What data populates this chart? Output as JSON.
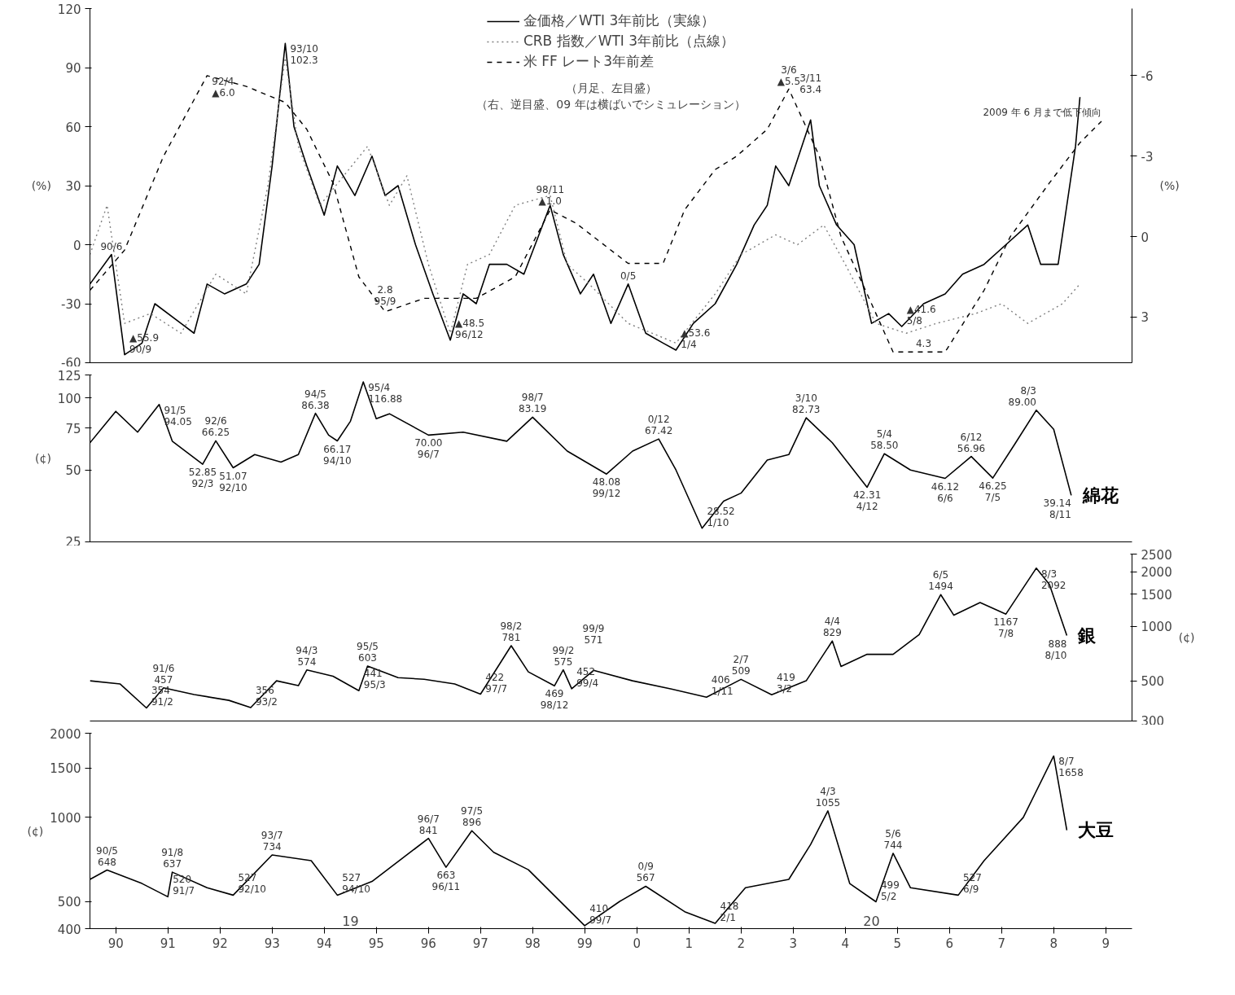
{
  "chart_data": [
    {
      "type": "line",
      "xlim": [
        "1990-01",
        "2010-01"
      ],
      "tick_labels": "y",
      "ylim": [
        -60,
        120
      ],
      "yticks": [
        -60,
        -30,
        0,
        30,
        60,
        90,
        120
      ],
      "ylabel": "(%)",
      "y2lim": [
        4.7,
        -8.5
      ],
      "y2ticks": [
        -6,
        -3,
        0,
        3
      ],
      "y2label": "(%)",
      "legend": "top",
      "series": [
        {
          "name": "金価格／WTI 3年前比（実線）",
          "color": "#000000",
          "line_style": "solid",
          "x": [
            "1990-01",
            "1990-06",
            "1990-09",
            "1991-01",
            "1991-04",
            "1991-10",
            "1992-01",
            "1992-04",
            "1992-08",
            "1993-01",
            "1993-04",
            "1993-07",
            "1993-10",
            "1993-12",
            "1994-03",
            "1994-07",
            "1994-10",
            "1995-02",
            "1995-06",
            "1995-09",
            "1995-12",
            "1996-04",
            "1996-08",
            "1996-12",
            "1997-03",
            "1997-06",
            "1997-09",
            "1998-01",
            "1998-05",
            "1998-11",
            "1999-02",
            "1999-06",
            "1999-09",
            "2000-01",
            "2000-05",
            "2000-09",
            "2001-01",
            "2001-04",
            "2001-08",
            "2002-01",
            "2002-06",
            "2002-10",
            "2003-01",
            "2003-03",
            "2003-06",
            "2003-11",
            "2004-01",
            "2004-05",
            "2004-09",
            "2005-01",
            "2005-05",
            "2005-08",
            "2006-01",
            "2006-06",
            "2006-10",
            "2007-03",
            "2007-08",
            "2008-01",
            "2008-04",
            "2008-08",
            "2008-12",
            "2009-01"
          ],
          "values": [
            -20,
            -5,
            -55.9,
            -50,
            -30,
            -40,
            -45,
            -20,
            -25,
            -20,
            -10,
            40,
            102.3,
            60,
            40,
            15,
            40,
            25,
            45,
            25,
            30,
            0,
            -25,
            -48.5,
            -25,
            -30,
            -10,
            -10,
            -15,
            20,
            -5,
            -25,
            -15,
            -40,
            -20,
            -45,
            -50,
            -53.6,
            -40,
            -30,
            -10,
            10,
            20,
            40,
            30,
            63.4,
            30,
            10,
            0,
            -40,
            -35,
            -41.6,
            -30,
            -25,
            -15,
            -10,
            0,
            10,
            -10,
            -10,
            50,
            75
          ]
        },
        {
          "name": "CRB 指数／WTI 3年前比（点線）",
          "color": "#808080",
          "line_style": "dotted",
          "x": [
            "1990-01",
            "1990-05",
            "1990-09",
            "1991-03",
            "1991-10",
            "1992-06",
            "1993-01",
            "1993-06",
            "1993-10",
            "1994-01",
            "1994-06",
            "1995-05",
            "1995-10",
            "1996-02",
            "1996-07",
            "1996-12",
            "1997-04",
            "1997-09",
            "1998-03",
            "1998-11",
            "1999-03",
            "1999-08",
            "2000-05",
            "2001-04",
            "2002-01",
            "2002-07",
            "2003-03",
            "2003-08",
            "2004-02",
            "2004-07",
            "2005-02",
            "2005-09",
            "2006-04",
            "2007-01",
            "2007-07",
            "2008-01",
            "2008-09",
            "2009-01"
          ],
          "values": [
            -5,
            20,
            -40,
            -35,
            -45,
            -15,
            -25,
            30,
            95,
            50,
            20,
            50,
            20,
            35,
            -10,
            -45,
            -10,
            -5,
            20,
            25,
            -10,
            -20,
            -40,
            -50,
            -25,
            -5,
            5,
            0,
            10,
            -10,
            -40,
            -45,
            -40,
            -35,
            -30,
            -40,
            -30,
            -20
          ]
        },
        {
          "name": "米 FF レート3年前差",
          "color": "#000000",
          "line_style": "dashed",
          "axis": "y2",
          "x": [
            "1990-01",
            "1990-09",
            "1991-06",
            "1992-04",
            "1993-01",
            "1993-10",
            "1994-03",
            "1994-09",
            "1995-03",
            "1995-09",
            "1996-06",
            "1997-06",
            "1998-03",
            "1998-11",
            "1999-05",
            "2000-05",
            "2001-01",
            "2001-06",
            "2002-01",
            "2002-06",
            "2003-01",
            "2003-06",
            "2004-01",
            "2004-06",
            "2005-01",
            "2005-06",
            "2006-06",
            "2007-03",
            "2007-09",
            "2008-06",
            "2009-01",
            "2009-06"
          ],
          "values": [
            2.0,
            0.5,
            -3,
            -6.0,
            -5.6,
            -5,
            -4,
            -2,
            1.5,
            2.8,
            2.3,
            2.3,
            1.5,
            -1.0,
            -0.5,
            1.0,
            1.0,
            -1,
            -2.5,
            -3,
            -4,
            -5.5,
            -3,
            0,
            2.5,
            4.3,
            4.3,
            2,
            0,
            -2,
            -3.5,
            -4.3
          ]
        }
      ],
      "annotations": [
        "（月足、左目盛）",
        "（右、逆目盛、09 年は横ばいでシミュレーション）",
        {
          "text": "93/10\n102.3",
          "x": "1993-10",
          "y": 102.3
        },
        {
          "text": "92/4\n▲6.0",
          "x": "1992-04",
          "y": 86
        },
        {
          "text": "90/6",
          "x": "1990-06",
          "y": -5
        },
        {
          "text": "▲55.9\n90/9",
          "x": "1990-09",
          "y": -55.9
        },
        {
          "text": "2.8\n95/9",
          "x": "1995-09",
          "y": -33
        },
        {
          "text": "▲48.5\n96/12",
          "x": "1996-12",
          "y": -48.5
        },
        {
          "text": "98/11\n▲1.0",
          "x": "1998-11",
          "y": 18
        },
        {
          "text": "0/5",
          "x": "2000-05",
          "y": -20
        },
        {
          "text": "▲53.6\n1/4",
          "x": "2001-04",
          "y": -53.6
        },
        {
          "text": "3/6\n▲5.5",
          "x": "2003-06",
          "y": 79
        },
        {
          "text": "3/11\n63.4",
          "x": "2003-11",
          "y": 63.4
        },
        {
          "text": "▲41.6\n5/8",
          "x": "2005-08",
          "y": -41.6
        },
        {
          "text": "4.3",
          "x": "2006-01",
          "y": -53
        },
        {
          "text": "2009 年 6 月まで低下傾向",
          "x": "2009-06",
          "y": 63
        }
      ]
    },
    {
      "type": "line",
      "xlim": [
        "1990-01",
        "2010-01"
      ],
      "tick_labels": "y",
      "log": true,
      "ylim": [
        25,
        125
      ],
      "yticks": [
        25,
        50,
        75,
        100,
        125
      ],
      "ylabel": "(¢)",
      "series": [
        {
          "name": "綿花",
          "color": "#000000",
          "x": [
            "1990-01",
            "1990-07",
            "1990-12",
            "1991-05",
            "1991-08",
            "1992-03",
            "1992-06",
            "1992-10",
            "1993-03",
            "1993-09",
            "1994-01",
            "1994-05",
            "1994-08",
            "1994-10",
            "1995-01",
            "1995-04",
            "1995-07",
            "1995-10",
            "1996-07",
            "1997-03",
            "1998-01",
            "1998-07",
            "1999-03",
            "1999-12",
            "2000-06",
            "2000-12",
            "2001-04",
            "2001-10",
            "2002-03",
            "2002-07",
            "2003-01",
            "2003-06",
            "2003-10",
            "2004-04",
            "2004-12",
            "2005-04",
            "2005-10",
            "2006-06",
            "2006-12",
            "2007-05",
            "2007-10",
            "2008-03",
            "2008-07",
            "2008-11"
          ],
          "values": [
            65,
            88,
            72,
            94.05,
            66,
            52.85,
            66.25,
            51.07,
            58,
            54,
            58,
            86.38,
            70,
            66.17,
            80,
            116.88,
            82,
            86,
            70.0,
            72,
            66,
            83.19,
            60,
            48.08,
            60,
            67.42,
            50,
            28.52,
            37,
            40,
            55,
            58,
            82.73,
            65,
            42.31,
            58.5,
            50,
            46.12,
            56.96,
            46.25,
            64,
            89.0,
            74,
            39.14
          ]
        }
      ],
      "annotations": [
        {
          "text": "91/5\n94.05",
          "x": "1991-05",
          "y": 94.05
        },
        {
          "text": "92/6\n66.25",
          "x": "1992-06",
          "y": 66.25
        },
        {
          "text": "52.85\n92/3",
          "x": "1992-03",
          "y": 52.85
        },
        {
          "text": "51.07\n92/10",
          "x": "1992-10",
          "y": 51.07
        },
        {
          "text": "94/5\n86.38",
          "x": "1994-05",
          "y": 86.38
        },
        {
          "text": "66.17\n94/10",
          "x": "1994-10",
          "y": 66.17
        },
        {
          "text": "95/4\n116.88",
          "x": "1995-04",
          "y": 116.88
        },
        {
          "text": "70.00\n96/7",
          "x": "1996-07",
          "y": 70.0
        },
        {
          "text": "98/7\n83.19",
          "x": "1998-07",
          "y": 83.19
        },
        {
          "text": "48.08\n99/12",
          "x": "1999-12",
          "y": 48.08
        },
        {
          "text": "0/12\n67.42",
          "x": "2000-12",
          "y": 67.42
        },
        {
          "text": "28.52\n1/10",
          "x": "2001-10",
          "y": 28.52
        },
        {
          "text": "3/10\n82.73",
          "x": "2003-10",
          "y": 82.73
        },
        {
          "text": "42.31\n4/12",
          "x": "2004-12",
          "y": 42.31
        },
        {
          "text": "5/4\n58.50",
          "x": "2005-04",
          "y": 58.5
        },
        {
          "text": "46.12\n6/6",
          "x": "2006-06",
          "y": 46.12
        },
        {
          "text": "6/12\n56.96",
          "x": "2006-12",
          "y": 56.96
        },
        {
          "text": "46.25\n7/5",
          "x": "2007-05",
          "y": 46.25
        },
        {
          "text": "8/3\n89.00",
          "x": "2008-03",
          "y": 89.0
        },
        {
          "text": "39.14\n8/11",
          "x": "2008-11",
          "y": 39.14
        }
      ]
    },
    {
      "type": "line",
      "xlim": [
        "1990-01",
        "2010-01"
      ],
      "tick_labels": "y",
      "log": true,
      "ylim": [
        300,
        2500
      ],
      "yticks": [
        300,
        500,
        1000,
        1500,
        2000,
        2500
      ],
      "ylabel": "(¢)",
      "series": [
        {
          "name": "銀",
          "color": "#000000",
          "x": [
            "1990-01",
            "1990-08",
            "1991-02",
            "1991-06",
            "1992-01",
            "1992-09",
            "1993-02",
            "1993-08",
            "1994-01",
            "1994-03",
            "1994-09",
            "1995-03",
            "1995-05",
            "1995-12",
            "1996-06",
            "1997-01",
            "1997-07",
            "1998-02",
            "1998-06",
            "1998-12",
            "1999-02",
            "1999-04",
            "1999-09",
            "2000-06",
            "2001-03",
            "2001-11",
            "2002-07",
            "2003-02",
            "2003-10",
            "2004-04",
            "2004-06",
            "2004-12",
            "2005-06",
            "2005-12",
            "2006-05",
            "2006-08",
            "2007-02",
            "2007-08",
            "2008-03",
            "2008-06",
            "2008-10"
          ],
          "values": [
            500,
            480,
            354,
            457,
            420,
            390,
            356,
            500,
            470,
            574,
            530,
            441,
            603,
            520,
            510,
            480,
            422,
            781,
            560,
            469,
            575,
            452,
            571,
            500,
            450,
            406,
            509,
            419,
            500,
            829,
            600,
            700,
            700,
            900,
            1494,
            1150,
            1350,
            1167,
            2092,
            1700,
            888
          ]
        }
      ],
      "annotations": [
        {
          "text": "91/6\n457",
          "x": "1991-06",
          "y": 457
        },
        {
          "text": "354\n91/2",
          "x": "1991-02",
          "y": 354
        },
        {
          "text": "356\n93/2",
          "x": "1993-02",
          "y": 356
        },
        {
          "text": "94/3\n574",
          "x": "1994-03",
          "y": 574
        },
        {
          "text": "441\n95/3",
          "x": "1995-03",
          "y": 441
        },
        {
          "text": "95/5\n603",
          "x": "1995-05",
          "y": 603
        },
        {
          "text": "422\n97/7",
          "x": "1997-07",
          "y": 422
        },
        {
          "text": "98/2\n781",
          "x": "1998-02",
          "y": 781
        },
        {
          "text": "469\n98/12",
          "x": "1998-12",
          "y": 469
        },
        {
          "text": "99/2\n575",
          "x": "1999-02",
          "y": 575
        },
        {
          "text": "452\n99/4",
          "x": "1999-04",
          "y": 452
        },
        {
          "text": "99/9\n571",
          "x": "1999-09",
          "y": 571
        },
        {
          "text": "406\n1/11",
          "x": "2001-11",
          "y": 406
        },
        {
          "text": "2/7\n509",
          "x": "2002-07",
          "y": 509
        },
        {
          "text": "419\n3/2",
          "x": "2003-02",
          "y": 419
        },
        {
          "text": "4/4\n829",
          "x": "2004-04",
          "y": 829
        },
        {
          "text": "6/5\n1494",
          "x": "2006-05",
          "y": 1494
        },
        {
          "text": "1167\n7/8",
          "x": "2007-08",
          "y": 1167
        },
        {
          "text": "8/3\n2092",
          "x": "2008-03",
          "y": 2092
        },
        {
          "text": "888\n8/10",
          "x": "2008-10",
          "y": 888
        }
      ]
    },
    {
      "type": "line",
      "xlim": [
        "1990-01",
        "2010-01"
      ],
      "xticks": [
        {
          "value": "1990-07",
          "label": "90"
        },
        {
          "value": "1991-07",
          "label": "91"
        },
        {
          "value": "1992-07",
          "label": "92"
        },
        {
          "value": "1993-07",
          "label": "93"
        },
        {
          "value": "1994-07",
          "label": "94"
        },
        {
          "value": "1995-07",
          "label": "95"
        },
        {
          "value": "1996-07",
          "label": "96"
        },
        {
          "value": "1997-07",
          "label": "97"
        },
        {
          "value": "1998-07",
          "label": "98"
        },
        {
          "value": "1999-07",
          "label": "99"
        },
        {
          "value": "2000-07",
          "label": "0"
        },
        {
          "value": "2001-07",
          "label": "1"
        },
        {
          "value": "2002-07",
          "label": "2"
        },
        {
          "value": "2003-07",
          "label": "3"
        },
        {
          "value": "2004-07",
          "label": "4"
        },
        {
          "value": "2005-07",
          "label": "5"
        },
        {
          "value": "2006-07",
          "label": "6"
        },
        {
          "value": "2007-07",
          "label": "7"
        },
        {
          "value": "2008-07",
          "label": "8"
        },
        {
          "value": "2009-07",
          "label": "9"
        }
      ],
      "log": true,
      "ylim": [
        400,
        2000
      ],
      "yticks": [
        400,
        500,
        1000,
        1500,
        2000
      ],
      "ylabel": "(¢)",
      "series": [
        {
          "name": "大豆",
          "color": "#000000",
          "x": [
            "1990-01",
            "1990-05",
            "1991-01",
            "1991-07",
            "1991-08",
            "1992-04",
            "1992-10",
            "1993-07",
            "1994-04",
            "1994-10",
            "1995-06",
            "1996-07",
            "1996-11",
            "1997-05",
            "1997-10",
            "1998-06",
            "1999-07",
            "2000-03",
            "2000-09",
            "2001-06",
            "2002-01",
            "2002-08",
            "2003-06",
            "2003-11",
            "2004-03",
            "2004-08",
            "2005-02",
            "2005-06",
            "2005-10",
            "2006-09",
            "2007-03",
            "2007-12",
            "2008-07",
            "2008-10"
          ],
          "values": [
            600,
            648,
            580,
            520,
            637,
            560,
            527,
            734,
            700,
            527,
            590,
            841,
            663,
            896,
            750,
            650,
            410,
            500,
            567,
            460,
            418,
            560,
            600,
            800,
            1055,
            580,
            499,
            744,
            560,
            527,
            700,
            1000,
            1658,
            900
          ]
        }
      ],
      "annotations": [
        "19",
        "20",
        {
          "text": "90/5\n648",
          "x": "1990-05",
          "y": 648
        },
        {
          "text": "520\n91/7",
          "x": "1991-07",
          "y": 520
        },
        {
          "text": "91/8\n637",
          "x": "1991-08",
          "y": 637
        },
        {
          "text": "527\n92/10",
          "x": "1992-10",
          "y": 527
        },
        {
          "text": "93/7\n734",
          "x": "1993-07",
          "y": 734
        },
        {
          "text": "527\n94/10",
          "x": "1994-10",
          "y": 527
        },
        {
          "text": "96/7\n841",
          "x": "1996-07",
          "y": 841
        },
        {
          "text": "663\n96/11",
          "x": "1996-11",
          "y": 663
        },
        {
          "text": "97/5\n896",
          "x": "1997-05",
          "y": 896
        },
        {
          "text": "410\n99/7",
          "x": "1999-07",
          "y": 410
        },
        {
          "text": "0/9\n567",
          "x": "2000-09",
          "y": 567
        },
        {
          "text": "418\n2/1",
          "x": "2002-01",
          "y": 418
        },
        {
          "text": "4/3\n1055",
          "x": "2004-03",
          "y": 1055
        },
        {
          "text": "499\n5/2",
          "x": "2005-02",
          "y": 499
        },
        {
          "text": "5/6\n744",
          "x": "2005-06",
          "y": 744
        },
        {
          "text": "527\n6/9",
          "x": "2006-09",
          "y": 527
        },
        {
          "text": "8/7\n1658",
          "x": "2008-07",
          "y": 1658
        }
      ]
    }
  ]
}
